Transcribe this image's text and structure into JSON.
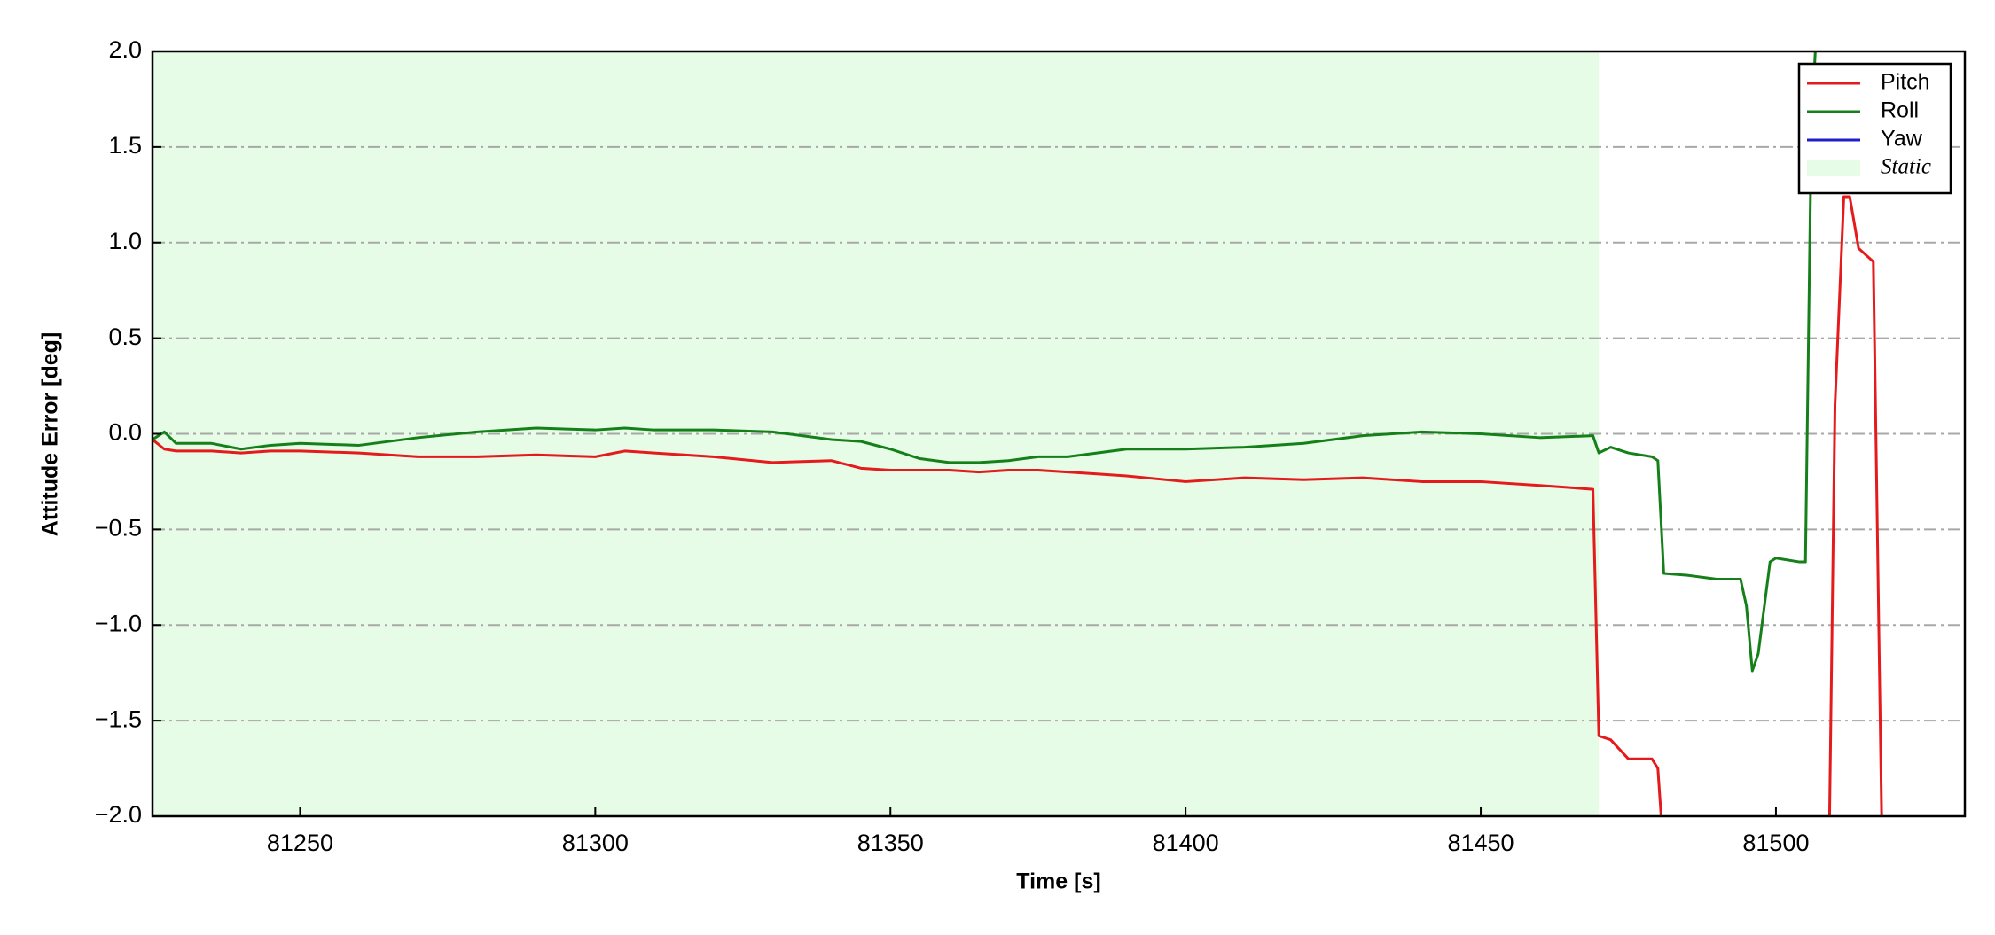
{
  "chart_data": {
    "type": "line",
    "xlabel": "Time [s]",
    "ylabel": "Attitude Error [deg]",
    "xlim": [
      81225,
      81532
    ],
    "ylim": [
      -2,
      2
    ],
    "xticks": [
      81250,
      81300,
      81350,
      81400,
      81450,
      81500
    ],
    "yticks": [
      {
        "value": 2,
        "label": "2.0"
      },
      1.5,
      {
        "value": 1,
        "label": "1.0"
      },
      0.5,
      {
        "value": 0,
        "label": "0.0"
      },
      {
        "value": -0.5,
        "label": "−0.5"
      },
      {
        "value": -1,
        "label": "−1.0"
      },
      {
        "value": -1.5,
        "label": "−1.5"
      },
      {
        "value": -2,
        "label": "−2.0"
      }
    ],
    "grid": true,
    "legend": "upper right",
    "span": {
      "name": "Static",
      "color": "#e6fce6",
      "range": [
        81225,
        81470
      ]
    },
    "x": [
      81225,
      81227,
      81229,
      81235,
      81240,
      81245,
      81250,
      81260,
      81270,
      81280,
      81290,
      81300,
      81305,
      81310,
      81320,
      81330,
      81340,
      81345,
      81350,
      81355,
      81360,
      81365,
      81370,
      81375,
      81380,
      81385,
      81390,
      81400,
      81410,
      81420,
      81430,
      81440,
      81450,
      81460,
      81469,
      81470,
      81472,
      81475,
      81479,
      81480,
      81481,
      81485,
      81490,
      81494,
      81495,
      81496,
      81497,
      81499,
      81500,
      81504,
      81505,
      81506,
      81507,
      81509,
      81510,
      81511.5,
      81512.5,
      81514,
      81516.5,
      81518
    ],
    "series": [
      {
        "name": "Pitch",
        "color": "#e41a1c",
        "values": [
          -0.03,
          -0.08,
          -0.09,
          -0.09,
          -0.1,
          -0.09,
          -0.09,
          -0.1,
          -0.12,
          -0.12,
          -0.11,
          -0.12,
          -0.09,
          -0.1,
          -0.12,
          -0.15,
          -0.14,
          -0.18,
          -0.19,
          -0.19,
          -0.19,
          -0.2,
          -0.19,
          -0.19,
          -0.2,
          -0.21,
          -0.22,
          -0.25,
          -0.23,
          -0.24,
          -0.23,
          -0.25,
          -0.25,
          -0.27,
          -0.29,
          -1.58,
          -1.6,
          -1.7,
          -1.7,
          -1.75,
          -2.2,
          null,
          null,
          null,
          null,
          null,
          null,
          null,
          null,
          null,
          null,
          null,
          null,
          -2.2,
          0.15,
          1.24,
          1.24,
          0.97,
          0.9,
          -2.2
        ]
      },
      {
        "name": "Roll",
        "color": "#15801a",
        "values": [
          -0.03,
          0.01,
          -0.05,
          -0.05,
          -0.08,
          -0.06,
          -0.05,
          -0.06,
          -0.02,
          0.01,
          0.03,
          0.02,
          0.03,
          0.02,
          0.02,
          0.01,
          -0.03,
          -0.04,
          -0.08,
          -0.13,
          -0.15,
          -0.15,
          -0.14,
          -0.12,
          -0.12,
          -0.1,
          -0.08,
          -0.08,
          -0.07,
          -0.05,
          -0.01,
          0.01,
          0.0,
          -0.02,
          -0.01,
          -0.1,
          -0.07,
          -0.1,
          -0.12,
          -0.14,
          -0.73,
          -0.74,
          -0.76,
          -0.76,
          -0.9,
          -1.24,
          -1.15,
          -0.67,
          -0.65,
          -0.67,
          -0.67,
          1.6,
          2.2,
          null,
          null,
          null,
          null,
          null,
          null,
          null
        ]
      },
      {
        "name": "Yaw",
        "color": "#1f1fc8",
        "values": [
          null,
          null,
          null,
          null,
          null,
          null,
          null,
          null,
          null,
          null,
          null,
          null,
          null,
          null,
          null,
          null,
          null,
          null,
          null,
          null,
          null,
          null,
          null,
          null,
          null,
          null,
          null,
          null,
          null,
          null,
          null,
          null,
          null,
          null,
          null,
          null,
          null,
          null,
          null,
          null,
          null,
          null,
          null,
          null,
          null,
          null,
          null,
          null,
          null,
          null,
          null,
          null,
          null,
          null,
          null,
          null,
          null,
          null,
          null,
          null
        ]
      }
    ]
  }
}
